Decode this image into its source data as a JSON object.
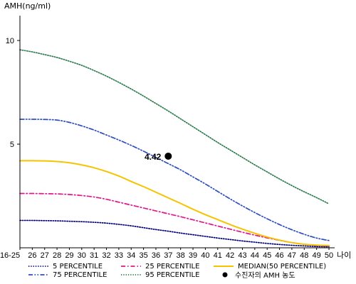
{
  "chart_data": {
    "type": "line",
    "ylabel": "AMH(ng/ml)",
    "xlabel": "나이",
    "categories": [
      "16-25",
      "26",
      "27",
      "28",
      "29",
      "30",
      "31",
      "32",
      "33",
      "34",
      "35",
      "36",
      "37",
      "38",
      "39",
      "40",
      "41",
      "42",
      "43",
      "44",
      "45",
      "46",
      "47",
      "48",
      "49",
      "50"
    ],
    "yticks": [
      5,
      10
    ],
    "ylim": [
      0,
      11.2
    ],
    "grid": false,
    "legend_position": "bottom",
    "series": [
      {
        "name": "5 PERCENTILE",
        "color": "#00007F",
        "style": "dotted",
        "values": [
          1.32,
          1.32,
          1.31,
          1.3,
          1.28,
          1.26,
          1.23,
          1.19,
          1.13,
          1.06,
          0.97,
          0.88,
          0.8,
          0.71,
          0.63,
          0.55,
          0.47,
          0.4,
          0.33,
          0.27,
          0.21,
          0.16,
          0.12,
          0.09,
          0.06,
          0.05
        ]
      },
      {
        "name": "25 PERCENTILE",
        "color": "#E0188C",
        "style": "dash-dot",
        "values": [
          2.62,
          2.62,
          2.61,
          2.6,
          2.57,
          2.52,
          2.45,
          2.34,
          2.2,
          2.06,
          1.92,
          1.78,
          1.64,
          1.5,
          1.35,
          1.2,
          1.05,
          0.9,
          0.75,
          0.61,
          0.48,
          0.36,
          0.25,
          0.17,
          0.11,
          0.09
        ]
      },
      {
        "name": "MEDIAN(50 PERCENTILE)",
        "color": "#F5C400",
        "style": "solid",
        "values": [
          4.2,
          4.2,
          4.19,
          4.16,
          4.1,
          4.0,
          3.86,
          3.68,
          3.46,
          3.2,
          2.95,
          2.68,
          2.41,
          2.14,
          1.86,
          1.6,
          1.36,
          1.12,
          0.9,
          0.7,
          0.52,
          0.37,
          0.25,
          0.17,
          0.13,
          0.11
        ]
      },
      {
        "name": "75 PERCENTILE",
        "color": "#2E4FBF",
        "style": "dash-dot-dot",
        "values": [
          6.2,
          6.2,
          6.19,
          6.16,
          6.05,
          5.88,
          5.68,
          5.44,
          5.2,
          4.94,
          4.66,
          4.36,
          4.06,
          3.76,
          3.42,
          3.08,
          2.72,
          2.36,
          2.02,
          1.7,
          1.4,
          1.12,
          0.87,
          0.65,
          0.47,
          0.35
        ]
      },
      {
        "name": "95 PERCENTILE",
        "color": "#2E7D4F",
        "style": "dotted",
        "values": [
          9.55,
          9.45,
          9.32,
          9.18,
          9.0,
          8.8,
          8.55,
          8.28,
          7.98,
          7.66,
          7.32,
          6.96,
          6.6,
          6.22,
          5.84,
          5.46,
          5.08,
          4.72,
          4.36,
          4.0,
          3.66,
          3.32,
          3.0,
          2.7,
          2.42,
          2.12
        ]
      }
    ],
    "point": {
      "name": "수진자의 AMH 농도",
      "x": "37",
      "y": 4.42,
      "label": "4.42",
      "color": "#000000"
    }
  }
}
